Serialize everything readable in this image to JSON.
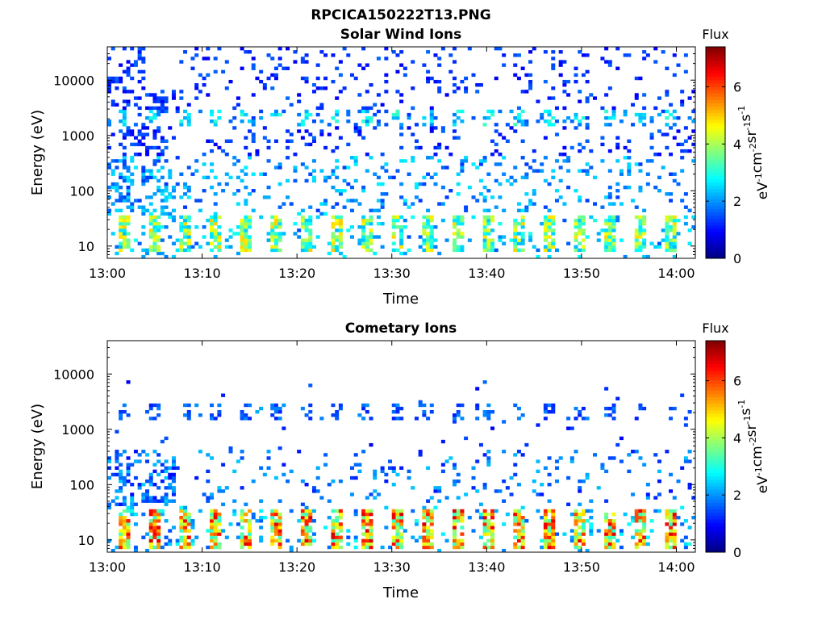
{
  "figure_title": "RPCICA150222T13.PNG",
  "colorbar": {
    "title": "Flux",
    "unit_parts": [
      "eV",
      "-1",
      "cm",
      "-2",
      "sr",
      "-1",
      "s",
      "-1"
    ],
    "ticks": [
      "0",
      "2",
      "4",
      "6"
    ],
    "range": [
      0,
      7.4
    ],
    "colormap": "jet"
  },
  "chart_data": [
    {
      "type": "heatmap",
      "title": "Solar Wind Ions",
      "xlabel": "Time",
      "ylabel": "Energy (eV)",
      "x_ticks": [
        "13:00",
        "13:10",
        "13:20",
        "13:30",
        "13:40",
        "13:50",
        "14:00"
      ],
      "xlim_minutes": [
        0,
        62
      ],
      "y_ticks": [
        "10",
        "100",
        "1000",
        "10000"
      ],
      "ylim": [
        6,
        40000
      ],
      "y_scale": "log",
      "value_range": [
        0,
        7.4
      ],
      "features": {
        "low_energy_bursts_eV": [
          8,
          35
        ],
        "low_energy_peak_flux": 5.0,
        "repeat_period_min": 3.2,
        "mid_band_eV": [
          1500,
          2800
        ],
        "mid_band_flux": 3.0,
        "background_flux": 1.3,
        "dense_region_minutes": [
          0,
          7
        ],
        "empty_top_gap_minutes": [
          4,
          7.5
        ]
      }
    },
    {
      "type": "heatmap",
      "title": "Cometary Ions",
      "xlabel": "Time",
      "ylabel": "Energy (eV)",
      "x_ticks": [
        "13:00",
        "13:10",
        "13:20",
        "13:30",
        "13:40",
        "13:50",
        "14:00"
      ],
      "xlim_minutes": [
        0,
        62
      ],
      "y_ticks": [
        "10",
        "100",
        "1000",
        "10000"
      ],
      "ylim": [
        6,
        40000
      ],
      "y_scale": "log",
      "value_range": [
        0,
        7.4
      ],
      "features": {
        "low_energy_bursts_eV": [
          7,
          35
        ],
        "low_energy_peak_flux": 6.8,
        "repeat_period_min": 3.2,
        "mid_band_eV": [
          1500,
          2800
        ],
        "mid_band_flux": 1.8,
        "background_flux": 1.0,
        "dense_region_minutes": [
          0,
          7
        ],
        "empty_top_gap_minutes": [
          0,
          62
        ]
      }
    }
  ]
}
